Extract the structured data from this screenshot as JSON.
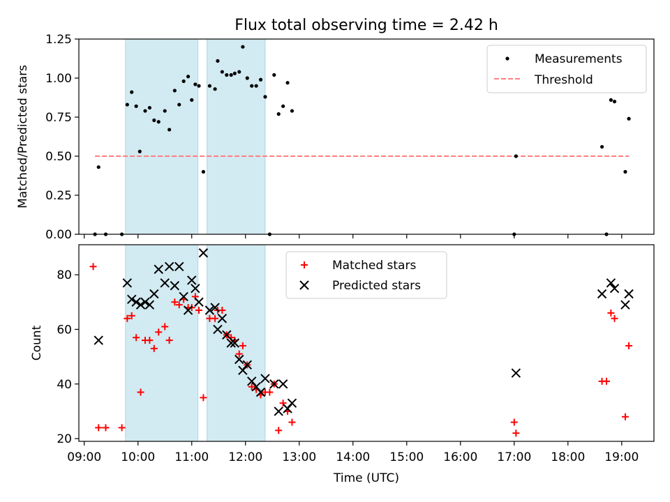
{
  "title": "Flux total observing time = 2.42 h",
  "chart_data": [
    {
      "type": "scatter",
      "ylabel": "Matched/Predicted stars",
      "xlim": [
        "08:54",
        "19:36"
      ],
      "ylim": [
        0,
        1.25
      ],
      "yticks": [
        "0.00",
        "0.25",
        "0.50",
        "0.75",
        "1.00",
        "1.25"
      ],
      "legend": {
        "placement": "top-right",
        "entries": [
          "Measurements",
          "Threshold"
        ]
      },
      "shaded_intervals": [
        [
          "09:46",
          "11:07"
        ],
        [
          "11:17",
          "12:22"
        ]
      ],
      "colors": {
        "measurements": "#000000",
        "threshold": "#ff7f7f",
        "shade": "#add8e6"
      },
      "series": [
        {
          "name": "Measurements",
          "points": [
            [
              "09:12",
              0.0
            ],
            [
              "09:16",
              0.43
            ],
            [
              "09:24",
              0.0
            ],
            [
              "09:42",
              0.0
            ],
            [
              "09:48",
              0.83
            ],
            [
              "09:53",
              0.91
            ],
            [
              "09:58",
              0.82
            ],
            [
              "10:02",
              0.53
            ],
            [
              "10:08",
              0.79
            ],
            [
              "10:13",
              0.81
            ],
            [
              "10:18",
              0.73
            ],
            [
              "10:23",
              0.72
            ],
            [
              "10:30",
              0.79
            ],
            [
              "10:35",
              0.67
            ],
            [
              "10:41",
              0.92
            ],
            [
              "10:46",
              0.83
            ],
            [
              "10:51",
              0.98
            ],
            [
              "10:56",
              1.01
            ],
            [
              "11:00",
              0.86
            ],
            [
              "11:04",
              0.96
            ],
            [
              "11:08",
              0.95
            ],
            [
              "11:13",
              0.4
            ],
            [
              "11:20",
              0.95
            ],
            [
              "11:26",
              0.93
            ],
            [
              "11:29",
              1.11
            ],
            [
              "11:34",
              1.04
            ],
            [
              "11:39",
              1.02
            ],
            [
              "11:44",
              1.02
            ],
            [
              "11:48",
              1.03
            ],
            [
              "11:53",
              1.04
            ],
            [
              "11:57",
              1.2
            ],
            [
              "12:02",
              1.0
            ],
            [
              "12:07",
              0.95
            ],
            [
              "12:12",
              0.95
            ],
            [
              "12:17",
              0.99
            ],
            [
              "12:22",
              0.88
            ],
            [
              "12:27",
              0.0
            ],
            [
              "12:32",
              1.02
            ],
            [
              "12:37",
              0.77
            ],
            [
              "12:42",
              0.82
            ],
            [
              "12:47",
              0.97
            ],
            [
              "12:52",
              0.79
            ],
            [
              "17:00",
              0.0
            ],
            [
              "17:02",
              0.5
            ],
            [
              "18:38",
              0.56
            ],
            [
              "18:43",
              0.0
            ],
            [
              "18:48",
              0.86
            ],
            [
              "18:52",
              0.85
            ],
            [
              "19:04",
              0.4
            ],
            [
              "19:08",
              0.74
            ]
          ]
        },
        {
          "name": "Threshold",
          "style": "dashed",
          "points": [
            [
              "09:12",
              0.5
            ],
            [
              "19:08",
              0.5
            ]
          ]
        }
      ]
    },
    {
      "type": "scatter",
      "xlabel": "Time (UTC)",
      "ylabel": "Count",
      "xlim": [
        "08:54",
        "19:36"
      ],
      "ylim": [
        19,
        91
      ],
      "xticks": [
        "09:00",
        "10:00",
        "11:00",
        "12:00",
        "13:00",
        "14:00",
        "15:00",
        "16:00",
        "17:00",
        "18:00",
        "19:00"
      ],
      "yticks": [
        "20",
        "40",
        "60",
        "80"
      ],
      "legend": {
        "placement": "top-center",
        "entries": [
          "Matched stars",
          "Predicted stars"
        ]
      },
      "shaded_intervals": [
        [
          "09:46",
          "11:07"
        ],
        [
          "11:17",
          "12:22"
        ]
      ],
      "colors": {
        "matched": "#ff0000",
        "predicted": "#000000",
        "shade": "#add8e6"
      },
      "series": [
        {
          "name": "Matched stars",
          "marker": "plus",
          "points": [
            [
              "09:10",
              83
            ],
            [
              "09:16",
              24
            ],
            [
              "09:24",
              24
            ],
            [
              "09:42",
              24
            ],
            [
              "09:48",
              64
            ],
            [
              "09:53",
              65
            ],
            [
              "09:58",
              57
            ],
            [
              "10:03",
              37
            ],
            [
              "10:08",
              56
            ],
            [
              "10:13",
              56
            ],
            [
              "10:18",
              53
            ],
            [
              "10:23",
              59
            ],
            [
              "10:30",
              61
            ],
            [
              "10:35",
              56
            ],
            [
              "10:41",
              70
            ],
            [
              "10:46",
              69
            ],
            [
              "10:51",
              71
            ],
            [
              "10:56",
              68
            ],
            [
              "11:00",
              68
            ],
            [
              "11:04",
              72
            ],
            [
              "11:08",
              67
            ],
            [
              "11:13",
              35
            ],
            [
              "11:20",
              64
            ],
            [
              "11:26",
              64
            ],
            [
              "11:29",
              67
            ],
            [
              "11:34",
              67
            ],
            [
              "11:39",
              58
            ],
            [
              "11:44",
              57
            ],
            [
              "11:48",
              56
            ],
            [
              "11:53",
              51
            ],
            [
              "11:57",
              54
            ],
            [
              "12:02",
              47
            ],
            [
              "12:07",
              39
            ],
            [
              "12:12",
              38
            ],
            [
              "12:17",
              36
            ],
            [
              "12:22",
              37
            ],
            [
              "12:27",
              37
            ],
            [
              "12:32",
              40
            ],
            [
              "12:37",
              23
            ],
            [
              "12:42",
              33
            ],
            [
              "12:47",
              30
            ],
            [
              "12:52",
              26
            ],
            [
              "17:00",
              26
            ],
            [
              "17:02",
              22
            ],
            [
              "18:38",
              41
            ],
            [
              "18:43",
              41
            ],
            [
              "18:48",
              66
            ],
            [
              "18:52",
              64
            ],
            [
              "19:04",
              28
            ],
            [
              "19:08",
              54
            ]
          ]
        },
        {
          "name": "Predicted stars",
          "marker": "x",
          "points": [
            [
              "09:16",
              56
            ],
            [
              "09:48",
              77
            ],
            [
              "09:53",
              71
            ],
            [
              "09:58",
              70
            ],
            [
              "10:03",
              69
            ],
            [
              "10:08",
              70
            ],
            [
              "10:13",
              69
            ],
            [
              "10:18",
              73
            ],
            [
              "10:23",
              82
            ],
            [
              "10:30",
              77
            ],
            [
              "10:35",
              83
            ],
            [
              "10:41",
              76
            ],
            [
              "10:46",
              83
            ],
            [
              "10:51",
              72
            ],
            [
              "10:56",
              67
            ],
            [
              "11:00",
              78
            ],
            [
              "11:04",
              75
            ],
            [
              "11:08",
              70
            ],
            [
              "11:13",
              88
            ],
            [
              "11:20",
              67
            ],
            [
              "11:26",
              68
            ],
            [
              "11:29",
              60
            ],
            [
              "11:34",
              64
            ],
            [
              "11:39",
              58
            ],
            [
              "11:44",
              55
            ],
            [
              "11:48",
              55
            ],
            [
              "11:53",
              49
            ],
            [
              "11:57",
              45
            ],
            [
              "12:02",
              47
            ],
            [
              "12:07",
              41
            ],
            [
              "12:12",
              39
            ],
            [
              "12:17",
              37
            ],
            [
              "12:22",
              42
            ],
            [
              "12:32",
              40
            ],
            [
              "12:37",
              30
            ],
            [
              "12:42",
              40
            ],
            [
              "12:47",
              31
            ],
            [
              "12:52",
              33
            ],
            [
              "17:02",
              44
            ],
            [
              "18:38",
              73
            ],
            [
              "18:48",
              77
            ],
            [
              "18:52",
              75
            ],
            [
              "19:04",
              69
            ],
            [
              "19:08",
              73
            ]
          ]
        }
      ]
    }
  ]
}
